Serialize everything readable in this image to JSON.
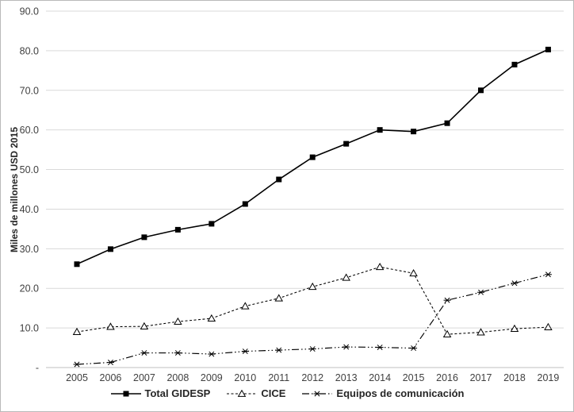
{
  "chart_data": {
    "type": "line",
    "title": "",
    "xlabel": "",
    "ylabel": "Miles de millones USD 2015",
    "ylim": [
      0,
      90
    ],
    "ytick_step": 10,
    "grid": true,
    "legend_position": "bottom",
    "x": [
      "2005",
      "2006",
      "2007",
      "2008",
      "2009",
      "2010",
      "2011",
      "2012",
      "2013",
      "2014",
      "2015",
      "2016",
      "2017",
      "2018",
      "2019"
    ],
    "y_ticks": [
      {
        "value": 90,
        "label": "90.0"
      },
      {
        "value": 80,
        "label": "80.0"
      },
      {
        "value": 70,
        "label": "70.0"
      },
      {
        "value": 60,
        "label": "60.0"
      },
      {
        "value": 50,
        "label": "50.0"
      },
      {
        "value": 40,
        "label": "40.0"
      },
      {
        "value": 30,
        "label": "30.0"
      },
      {
        "value": 20,
        "label": "20.0"
      },
      {
        "value": 10,
        "label": "10.0"
      },
      {
        "value": 0,
        "label": "-"
      }
    ],
    "series": [
      {
        "name": "Total GIDESP",
        "marker": "filled-square",
        "line_style": "solid",
        "values": [
          26.1,
          29.9,
          32.9,
          34.8,
          36.3,
          41.3,
          47.5,
          53.1,
          56.5,
          60.0,
          59.6,
          61.7,
          70.0,
          76.5,
          80.3
        ]
      },
      {
        "name": "CICE",
        "marker": "open-triangle",
        "line_style": "dashed",
        "values": [
          9.0,
          10.3,
          10.4,
          11.6,
          12.4,
          15.5,
          17.5,
          20.4,
          22.7,
          25.4,
          23.8,
          8.4,
          8.9,
          9.8,
          10.2
        ]
      },
      {
        "name": "Equipos de comunicación",
        "marker": "asterisk",
        "line_style": "dash-dot-dot",
        "values": [
          0.8,
          1.3,
          3.7,
          3.7,
          3.4,
          4.1,
          4.4,
          4.7,
          5.2,
          5.1,
          4.9,
          17.0,
          19.0,
          21.3,
          23.5
        ]
      }
    ],
    "colors": {
      "series": "#000000",
      "grid": "#d9d9d9",
      "axis": "#bfbfbf",
      "text": "#404040"
    }
  }
}
